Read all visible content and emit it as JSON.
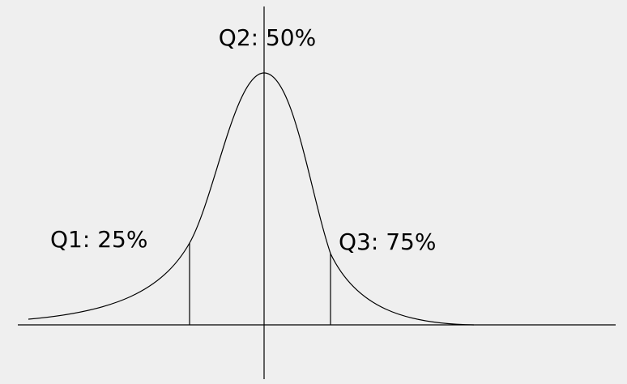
{
  "labels": {
    "q1": "Q1: 25%",
    "q2": "Q2: 50%",
    "q3": "Q3: 75%"
  }
}
